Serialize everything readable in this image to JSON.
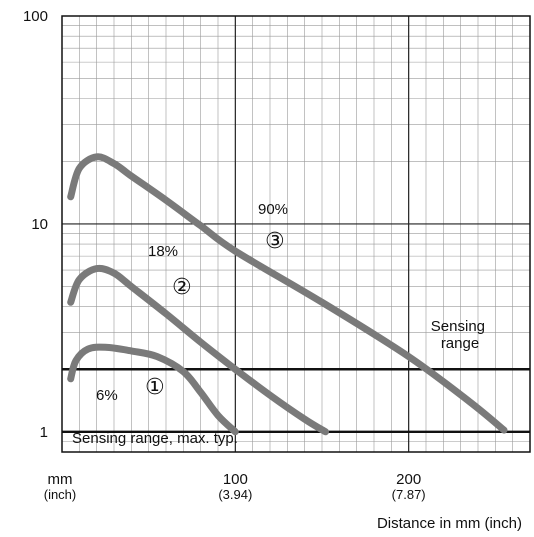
{
  "chart_data": {
    "type": "line",
    "title": "",
    "xlabel": "Distance in mm (inch)",
    "ylabel": "",
    "xlim": [
      0,
      270
    ],
    "ylim": [
      0.8,
      100
    ],
    "y_scale": "log",
    "x_unit_label": "mm",
    "x_unit_sub": "(inch)",
    "x_ticks": [
      {
        "value": 100,
        "label": "100",
        "sublabel": "(3.94)"
      },
      {
        "value": 200,
        "label": "200",
        "sublabel": "(7.87)"
      }
    ],
    "y_ticks": [
      {
        "value": 1,
        "label": "1"
      },
      {
        "value": 10,
        "label": "10"
      },
      {
        "value": 100,
        "label": "100"
      }
    ],
    "grid": true,
    "series": [
      {
        "name": "90%",
        "marker": "③",
        "color": "#7a7a7a",
        "x": [
          5,
          10,
          20,
          30,
          40,
          60,
          80,
          100,
          150,
          200,
          235,
          255
        ],
        "y": [
          13.5,
          18.5,
          21,
          19.5,
          17,
          13,
          9.8,
          7.4,
          4.2,
          2.3,
          1.4,
          1.02
        ]
      },
      {
        "name": "18%",
        "marker": "②",
        "color": "#7a7a7a",
        "x": [
          5,
          10,
          20,
          30,
          40,
          60,
          80,
          100,
          120,
          140,
          152
        ],
        "y": [
          4.2,
          5.4,
          6.1,
          5.8,
          5.0,
          3.7,
          2.7,
          2.0,
          1.5,
          1.15,
          1.0
        ]
      },
      {
        "name": "6%",
        "marker": "①",
        "color": "#7a7a7a",
        "x": [
          5,
          8,
          15,
          25,
          40,
          55,
          70,
          80,
          90,
          100
        ],
        "y": [
          1.8,
          2.2,
          2.5,
          2.55,
          2.45,
          2.3,
          1.95,
          1.55,
          1.2,
          1.0
        ]
      }
    ],
    "annotations": [
      {
        "text": "Sensing range",
        "line_value": 2.0
      },
      {
        "text": "Sensing range, max. typ.",
        "line_value": 1.0
      }
    ]
  }
}
